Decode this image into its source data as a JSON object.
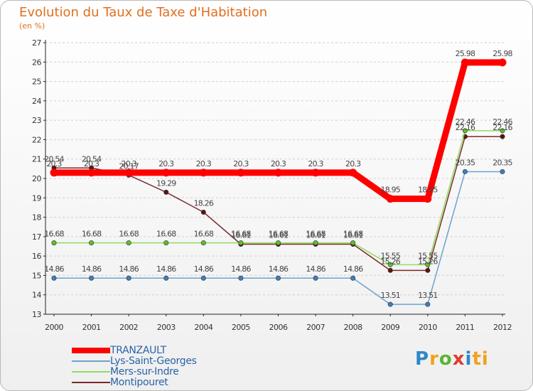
{
  "header": {
    "title": "Evolution du Taux de Taxe d'Habitation",
    "unit": "(en %)"
  },
  "brand": {
    "text": "Proxiti",
    "letters": [
      "P",
      "r",
      "o",
      "x",
      "i",
      "ti"
    ]
  },
  "chart_data": {
    "type": "line",
    "title": "Evolution du Taux de Taxe d'Habitation",
    "ylabel": "(en %)",
    "xlabel": "",
    "x": [
      "2000",
      "2001",
      "2002",
      "2003",
      "2004",
      "2005",
      "2006",
      "2007",
      "2008",
      "2009",
      "2010",
      "2011",
      "2012"
    ],
    "ylim": [
      13,
      27
    ],
    "yticks": [
      13,
      14,
      15,
      16,
      17,
      18,
      19,
      20,
      21,
      22,
      23,
      24,
      25,
      26,
      27
    ],
    "grid": "horizontal dashed",
    "legend": "bottom-left",
    "series": [
      {
        "name": "TRANZAULT",
        "color": "#ff0000",
        "markerColor": "#ff0000",
        "width": "thick",
        "values": [
          20.3,
          20.3,
          20.3,
          20.3,
          20.3,
          20.3,
          20.3,
          20.3,
          20.3,
          18.95,
          18.95,
          25.98,
          25.98
        ],
        "labels": [
          "20.3",
          "20.3",
          "20.3",
          "20.3",
          "20.3",
          "20.3",
          "20.3",
          "20.3",
          "20.3",
          "18.95",
          "18.95",
          "25.98",
          "25.98"
        ]
      },
      {
        "name": "Lys-Saint-Georges",
        "color": "#6fa0cf",
        "markerColor": "#3a7fc2",
        "width": "thin",
        "values": [
          14.86,
          14.86,
          14.86,
          14.86,
          14.86,
          14.86,
          14.86,
          14.86,
          14.86,
          13.51,
          13.51,
          20.35,
          20.35
        ],
        "labels": [
          "14.86",
          "14.86",
          "14.86",
          "14.86",
          "14.86",
          "14.86",
          "14.86",
          "14.86",
          "14.86",
          "13.51",
          "13.51",
          "20.35",
          "20.35"
        ]
      },
      {
        "name": "Mers-sur-Indre",
        "color": "#90dd60",
        "markerColor": "#5cbf2f",
        "width": "thin",
        "values": [
          16.68,
          16.68,
          16.68,
          16.68,
          16.68,
          16.68,
          16.68,
          16.68,
          16.68,
          15.55,
          15.55,
          22.46,
          22.46
        ],
        "labels": [
          "16.68",
          "16.68",
          "16.68",
          "16.68",
          "16.68",
          "16.68",
          "16.68",
          "16.68",
          "16.68",
          "15.55",
          "15.55",
          "22.46",
          "22.46"
        ]
      },
      {
        "name": "Montipouret",
        "color": "#7a2a2a",
        "markerColor": "#5a1414",
        "width": "thin",
        "values": [
          20.54,
          20.54,
          20.17,
          19.29,
          18.26,
          16.61,
          16.61,
          16.61,
          16.61,
          15.26,
          15.26,
          22.16,
          22.16
        ],
        "labels": [
          "20.54",
          "20.54",
          "20.17",
          "19.29",
          "18.26",
          "16.61",
          "16.61",
          "16.61",
          "16.61",
          "15.26",
          "15.26",
          "22.16",
          "22.16"
        ]
      }
    ]
  }
}
